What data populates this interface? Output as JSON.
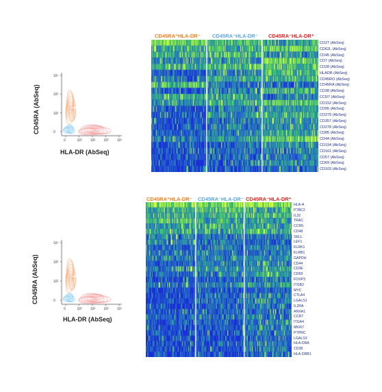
{
  "colors": {
    "group1": "#f07f1a",
    "group2": "#5aa6e3",
    "group3": "#e51f1f",
    "gene_text": "#1f2f8f",
    "heat_low": "#1a2fd6",
    "heat_mid": "#36c36a",
    "heat_high": "#d8ff3a",
    "contour_orange": "#f0a06a",
    "contour_blue": "#6cc0ea",
    "contour_red": "#ef8a8a"
  },
  "top": {
    "groups": [
      "CD45RA⁺HLA-DR⁻",
      "CD45RA⁻HLA-DR⁻",
      "CD45RA⁻HLA-DR⁺"
    ],
    "genes": [
      "CD27 (AbSeq)",
      "CD62L (AbSeq)",
      "CD45 (AbSeq)",
      "CD7 (AbSeq)",
      "CD28 (AbSeq)",
      "HLADR (AbSeq)",
      "CD45RO (AbSeq)",
      "CD45RA (AbSeq)",
      "CD38 (AbSeq)",
      "CCR7 (AbSeq)",
      "CD152 (AbSeq)",
      "CD95 (AbSeq)",
      "CD279 (AbSeq)",
      "CD357 (AbSeq)",
      "CD278 (AbSeq)",
      "CD85 (AbSeq)",
      "CD44 (AbSeq)",
      "CD194 (AbSeq)",
      "CD161 (AbSeq)",
      "CD57 (AbSeq)",
      "CD69 (AbSeq)",
      "CD103 (AbSeq)"
    ],
    "scatter": {
      "x_label": "HLA-DR (AbSeq)",
      "y_label": "CD45RA (AbSeq)",
      "x_ticks": [
        "0",
        "10³",
        "10²",
        "10³",
        "10⁴"
      ],
      "y_ticks": [
        "0",
        "10²",
        "10³",
        "10⁴"
      ]
    }
  },
  "bottom": {
    "groups": [
      "CD45RA⁺HLA-DR⁻",
      "CD45RA⁻HLA-DR⁻",
      "CD45RA⁻HLA-DR⁺"
    ],
    "genes": [
      "HLA-A",
      "PTBC2",
      "IL32",
      "TRAC",
      "CCR6",
      "CD48",
      "SELL",
      "LEF1",
      "KLRK1",
      "KLRB1",
      "GAPDH",
      "CD44",
      "CD3E",
      "CD69",
      "FOXP3",
      "ITGB2",
      "MYC",
      "CTLA4",
      "LGALS1",
      "IL2RA",
      "ANXA1",
      "CCR7",
      "ITGA4",
      "MKI67",
      "PTPRC",
      "LGALS3",
      "HLA-DRA",
      "CD38",
      "HLA-DRB1"
    ],
    "scatter": {
      "x_label": "HLA-DR (AbSeq)",
      "y_label": "CD45RA (AbSeq)",
      "x_ticks": [
        "0",
        "10³",
        "10²",
        "10³",
        "10⁴"
      ],
      "y_ticks": [
        "0",
        "10²",
        "10³",
        "10⁴"
      ]
    }
  }
}
